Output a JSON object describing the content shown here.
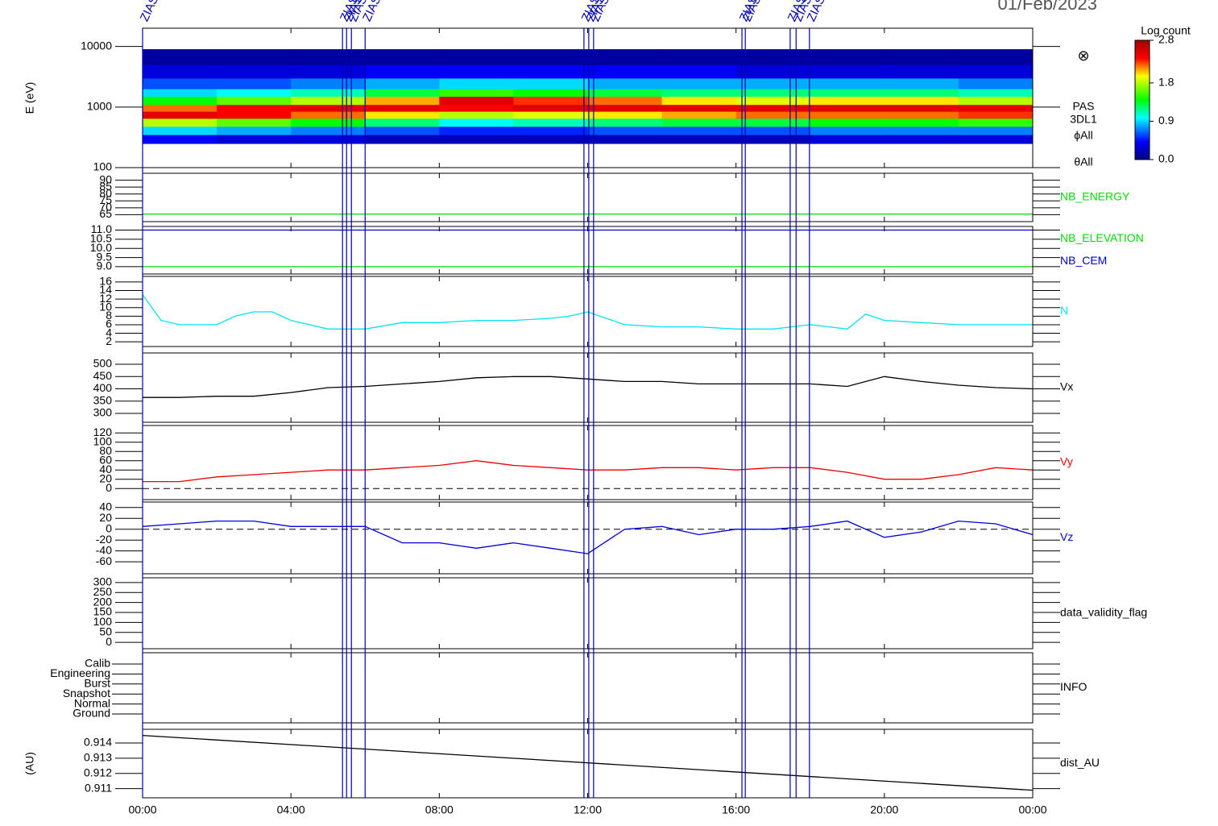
{
  "date": "01/Feb/2023",
  "time_axis": {
    "xlim": [
      0,
      24
    ],
    "xticks": [
      {
        "value": 0,
        "label": "00:00"
      },
      {
        "value": 4,
        "label": "04:00"
      },
      {
        "value": 8,
        "label": "08:00"
      },
      {
        "value": 12,
        "label": "12:00"
      },
      {
        "value": 16,
        "label": "16:00"
      },
      {
        "value": 20,
        "label": "20:00"
      },
      {
        "value": 24,
        "label": "00:00"
      }
    ]
  },
  "events": {
    "x": [
      0,
      5.39,
      5.5,
      5.63,
      6.0,
      11.9,
      12.03,
      12.16,
      16.16,
      16.25,
      17.46,
      17.62,
      17.98
    ],
    "labels": [
      "ZIAS",
      "ZIAS",
      "ZIAS",
      "ZIAS",
      "ZIAS",
      "ZIAS",
      "ZIAS",
      "ZIAS",
      "ZIAS",
      "ZIAS",
      "ZIAS",
      "ZIAS",
      "ZIAS"
    ],
    "color": "#0000aa"
  },
  "chart_data": [
    {
      "type": "heatmap",
      "ylabel": "E (eV)",
      "log": true,
      "ylim": [
        100,
        20000
      ],
      "yticks": [
        100,
        1000,
        10000
      ],
      "symbol": "⊗",
      "right_labels": [
        "PAS",
        "3DL1",
        "ϕAll",
        "θAll"
      ],
      "x_bins": [
        0,
        2,
        4,
        6,
        8,
        10,
        12,
        14,
        16,
        18,
        20,
        22,
        24
      ],
      "y_bins": [
        250,
        350,
        480,
        650,
        850,
        1100,
        1500,
        2000,
        3000,
        5000,
        9000
      ],
      "values": [
        [
          0.4,
          0.9,
          1.8,
          2.5,
          2.2,
          1.4,
          0.9,
          0.6,
          0.3,
          0.1
        ],
        [
          0.3,
          0.8,
          1.6,
          2.4,
          2.4,
          1.6,
          1.0,
          0.6,
          0.3,
          0.1
        ],
        [
          0.3,
          0.7,
          1.4,
          2.2,
          2.5,
          1.8,
          1.1,
          0.7,
          0.3,
          0.1
        ],
        [
          0.2,
          0.6,
          1.2,
          2.0,
          2.5,
          2.1,
          1.3,
          0.8,
          0.4,
          0.1
        ],
        [
          0.2,
          0.5,
          1.0,
          1.8,
          2.4,
          2.5,
          1.5,
          0.9,
          0.4,
          0.1
        ],
        [
          0.2,
          0.5,
          1.1,
          1.9,
          2.5,
          2.3,
          1.4,
          0.9,
          0.4,
          0.1
        ],
        [
          0.2,
          0.6,
          1.2,
          2.0,
          2.5,
          2.2,
          1.3,
          0.8,
          0.4,
          0.1
        ],
        [
          0.2,
          0.6,
          1.3,
          2.1,
          2.5,
          2.0,
          1.2,
          0.8,
          0.4,
          0.1
        ],
        [
          0.2,
          0.6,
          1.3,
          2.2,
          2.5,
          1.9,
          1.2,
          0.8,
          0.3,
          0.1
        ],
        [
          0.3,
          0.7,
          1.4,
          2.2,
          2.5,
          2.0,
          1.2,
          0.8,
          0.3,
          0.1
        ],
        [
          0.3,
          0.7,
          1.4,
          2.2,
          2.5,
          2.0,
          1.2,
          0.8,
          0.3,
          0.1
        ],
        [
          0.3,
          0.7,
          1.5,
          2.3,
          2.5,
          1.8,
          1.1,
          0.7,
          0.3,
          0.1
        ]
      ],
      "colorbar": {
        "title": "Log count",
        "lim": [
          0,
          2.8
        ],
        "ticks": [
          {
            "value": 0,
            "label": "0.0"
          },
          0.9,
          1.8,
          2.8
        ]
      }
    },
    {
      "type": "line",
      "ylim": [
        60,
        95
      ],
      "yticks": [
        65,
        70,
        75,
        80,
        85,
        90
      ],
      "x": [
        0,
        24
      ],
      "series": [
        {
          "name": "NB_ENERGY",
          "color": "#00dd00",
          "values": [
            65.5,
            65.5
          ]
        }
      ]
    },
    {
      "type": "line",
      "ylim": [
        8.6,
        11.2
      ],
      "yticks": [
        {
          "value": 9,
          "label": "9.0"
        },
        9.5,
        {
          "value": 10,
          "label": "10.0"
        },
        10.5,
        {
          "value": 11,
          "label": "11.0"
        }
      ],
      "x": [
        0,
        24
      ],
      "series": [
        {
          "name": "NB_ELEVATION",
          "color": "#00dd00",
          "values": [
            9,
            9
          ]
        },
        {
          "name": "NB_CEM",
          "color": "#0000cc",
          "values": [
            11,
            11
          ]
        }
      ]
    },
    {
      "type": "line",
      "ylim": [
        0.9,
        17.3
      ],
      "yticks": [
        2,
        4,
        6,
        8,
        10,
        12,
        14,
        16
      ],
      "x": [
        0,
        0.5,
        1,
        2,
        2.5,
        3,
        3.5,
        4,
        5,
        6,
        7,
        8,
        9,
        10,
        11,
        11.5,
        12,
        13,
        14,
        15,
        16,
        17,
        18,
        19,
        19.5,
        20,
        21,
        22,
        23,
        24
      ],
      "series": [
        {
          "name": "N",
          "color": "#00e5ee",
          "values": [
            13,
            7,
            6,
            6,
            8,
            9,
            9,
            7,
            5,
            5,
            6.5,
            6.5,
            7,
            7,
            7.5,
            8,
            9,
            6,
            5.5,
            5.5,
            5,
            5,
            6,
            5,
            8.5,
            7,
            6.5,
            6,
            6,
            6
          ]
        }
      ]
    },
    {
      "type": "line",
      "ylim": [
        264,
        546
      ],
      "yticks": [
        300,
        350,
        400,
        450,
        500
      ],
      "x": [
        0,
        1,
        2,
        3,
        4,
        5,
        6,
        7,
        8,
        9,
        10,
        11,
        12,
        13,
        14,
        15,
        16,
        17,
        18,
        19,
        20,
        21,
        22,
        23,
        24
      ],
      "series": [
        {
          "name": "Vx",
          "color": "#000000",
          "values": [
            365,
            365,
            370,
            370,
            385,
            405,
            410,
            420,
            430,
            445,
            450,
            450,
            440,
            430,
            430,
            420,
            420,
            420,
            420,
            410,
            450,
            430,
            415,
            405,
            400
          ]
        }
      ]
    },
    {
      "type": "line",
      "ylim": [
        -24,
        136
      ],
      "yticks": [
        0,
        20,
        40,
        60,
        80,
        100,
        120
      ],
      "zero_line": true,
      "x": [
        0,
        1,
        2,
        3,
        4,
        5,
        6,
        7,
        8,
        9,
        10,
        11,
        12,
        13,
        14,
        15,
        16,
        17,
        18,
        19,
        20,
        21,
        22,
        23,
        24
      ],
      "series": [
        {
          "name": "Vy",
          "color": "#ee0000",
          "values": [
            15,
            15,
            25,
            30,
            35,
            40,
            40,
            45,
            50,
            60,
            50,
            45,
            40,
            40,
            45,
            45,
            40,
            45,
            45,
            35,
            20,
            20,
            30,
            45,
            40
          ]
        }
      ]
    },
    {
      "type": "line",
      "ylim": [
        -82,
        50
      ],
      "yticks": [
        -60,
        -40,
        -20,
        0,
        20,
        40
      ],
      "zero_line": true,
      "x": [
        0,
        1,
        2,
        3,
        4,
        5,
        6,
        7,
        8,
        9,
        10,
        11,
        12,
        13,
        14,
        15,
        16,
        17,
        18,
        19,
        20,
        21,
        22,
        23,
        24
      ],
      "series": [
        {
          "name": "Vz",
          "color": "#0000dd",
          "values": [
            5,
            10,
            15,
            15,
            5,
            5,
            5,
            -25,
            -25,
            -35,
            -25,
            -35,
            -45,
            0,
            5,
            -10,
            0,
            0,
            5,
            15,
            -15,
            -5,
            15,
            10,
            -10
          ]
        }
      ]
    },
    {
      "type": "line",
      "ylim": [
        -32,
        324
      ],
      "yticks": [
        0,
        50,
        100,
        150,
        200,
        250,
        300
      ],
      "x": [],
      "series": [
        {
          "name": "data_validity_flag",
          "color": "#000000",
          "values": []
        }
      ]
    },
    {
      "type": "category",
      "name": "INFO",
      "categories": [
        "Calib",
        "Engineering",
        "Burst",
        "Snapshot",
        "Normal",
        "Ground"
      ]
    },
    {
      "type": "line",
      "ylabel": "(AU)",
      "ylim": [
        0.9104,
        0.9149
      ],
      "yticks": [
        0.911,
        0.912,
        0.913,
        0.914
      ],
      "x": [
        0,
        24
      ],
      "series": [
        {
          "name": "dist_AU",
          "color": "#000000",
          "values": [
            0.9145,
            0.9109
          ]
        }
      ]
    }
  ]
}
